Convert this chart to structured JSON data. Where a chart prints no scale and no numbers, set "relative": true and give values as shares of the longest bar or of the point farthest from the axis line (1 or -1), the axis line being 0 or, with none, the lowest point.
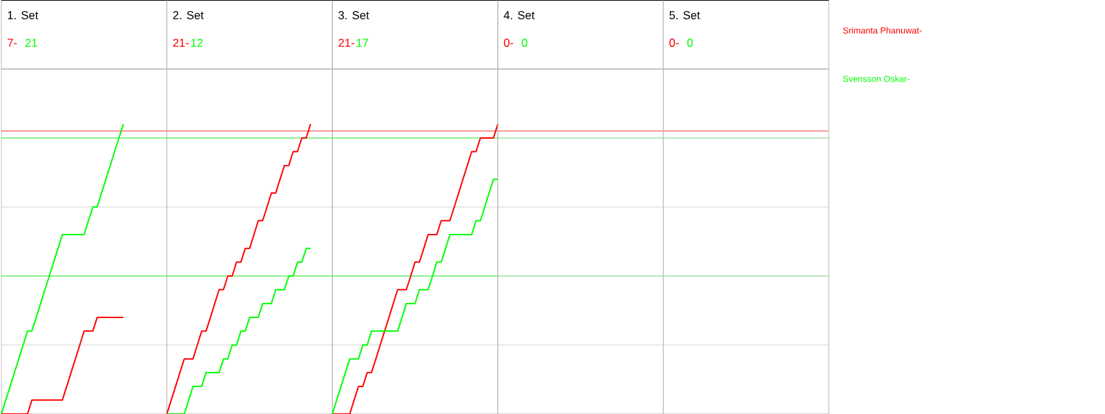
{
  "chart_data": [
    {
      "type": "line",
      "title": "1. Set",
      "annotations": [
        "7-",
        "21"
      ],
      "relative": true,
      "grid": "y",
      "legend": "right",
      "categories": [
        null,
        null,
        null,
        null,
        null,
        null,
        null,
        null,
        null,
        null,
        null,
        null,
        null,
        null,
        null,
        null,
        null,
        null,
        null,
        null,
        null,
        null,
        null,
        null,
        null,
        null,
        null,
        null,
        null,
        null,
        null,
        null,
        null,
        null,
        null,
        null,
        null,
        null,
        null
      ],
      "ref_lines": [
        {
          "axis": "y",
          "value": 0.976,
          "color": "#ff0000"
        },
        {
          "axis": "y",
          "value": 0.952,
          "color": "#00ff00"
        },
        {
          "axis": "y",
          "value": 0.476,
          "color": "#00ff00"
        }
      ],
      "series": [
        {
          "name": "Srimanta Phanuwat-",
          "color": "#ff0000",
          "values": [
            0,
            0,
            0,
            0,
            0,
            0,
            0,
            0.048,
            0.048,
            0.048,
            0.048,
            0.048,
            0.048,
            0.048,
            0.048,
            0.095,
            0.143,
            0.19,
            0.238,
            0.286,
            0.286,
            0.286,
            0.333,
            0.333,
            0.333,
            0.333,
            0.333,
            0.333,
            0.333,
            null,
            null,
            null,
            null,
            null,
            null,
            null,
            null,
            null,
            null
          ]
        },
        {
          "name": "Svensson Oskar-",
          "color": "#00ff00",
          "values": [
            0,
            0.048,
            0.095,
            0.143,
            0.19,
            0.238,
            0.286,
            0.286,
            0.333,
            0.381,
            0.429,
            0.476,
            0.524,
            0.571,
            0.619,
            0.619,
            0.619,
            0.619,
            0.619,
            0.619,
            0.667,
            0.714,
            0.714,
            0.762,
            0.81,
            0.857,
            0.905,
            0.952,
            1,
            null,
            null,
            null,
            null,
            null,
            null,
            null,
            null,
            null,
            null
          ]
        }
      ]
    },
    {
      "type": "line",
      "title": "2. Set",
      "annotations": [
        "21-",
        "12"
      ],
      "relative": true,
      "grid": "y",
      "categories": [
        null,
        null,
        null,
        null,
        null,
        null,
        null,
        null,
        null,
        null,
        null,
        null,
        null,
        null,
        null,
        null,
        null,
        null,
        null,
        null,
        null,
        null,
        null,
        null,
        null,
        null,
        null,
        null,
        null,
        null,
        null,
        null,
        null,
        null,
        null,
        null,
        null,
        null,
        null
      ],
      "ref_lines": [
        {
          "axis": "y",
          "value": 0.976,
          "color": "#ff0000"
        },
        {
          "axis": "y",
          "value": 0.952,
          "color": "#00ff00"
        },
        {
          "axis": "y",
          "value": 0.476,
          "color": "#00ff00"
        }
      ],
      "series": [
        {
          "color": "#ff0000",
          "values": [
            0,
            0.048,
            0.095,
            0.143,
            0.19,
            0.19,
            0.19,
            0.238,
            0.286,
            0.286,
            0.333,
            0.381,
            0.429,
            0.429,
            0.476,
            0.476,
            0.524,
            0.524,
            0.571,
            0.571,
            0.619,
            0.667,
            0.667,
            0.714,
            0.762,
            0.762,
            0.81,
            0.857,
            0.857,
            0.905,
            0.905,
            0.952,
            0.952,
            1,
            null,
            null,
            null,
            null,
            null
          ]
        },
        {
          "color": "#00ff00",
          "values": [
            0,
            0,
            0,
            0,
            0,
            0.048,
            0.095,
            0.095,
            0.095,
            0.143,
            0.143,
            0.143,
            0.143,
            0.19,
            0.19,
            0.238,
            0.238,
            0.286,
            0.286,
            0.333,
            0.333,
            0.333,
            0.381,
            0.381,
            0.381,
            0.429,
            0.429,
            0.429,
            0.476,
            0.476,
            0.524,
            0.524,
            0.571,
            0.571,
            null,
            null,
            null,
            null,
            null
          ]
        }
      ]
    },
    {
      "type": "line",
      "title": "3. Set",
      "annotations": [
        "21-",
        "17"
      ],
      "relative": true,
      "grid": "y",
      "categories": [
        null,
        null,
        null,
        null,
        null,
        null,
        null,
        null,
        null,
        null,
        null,
        null,
        null,
        null,
        null,
        null,
        null,
        null,
        null,
        null,
        null,
        null,
        null,
        null,
        null,
        null,
        null,
        null,
        null,
        null,
        null,
        null,
        null,
        null,
        null,
        null,
        null,
        null,
        null
      ],
      "ref_lines": [
        {
          "axis": "y",
          "value": 0.976,
          "color": "#ff0000"
        },
        {
          "axis": "y",
          "value": 0.952,
          "color": "#00ff00"
        },
        {
          "axis": "y",
          "value": 0.476,
          "color": "#00ff00"
        }
      ],
      "series": [
        {
          "color": "#ff0000",
          "values": [
            0,
            0,
            0,
            0,
            0,
            0.048,
            0.095,
            0.095,
            0.143,
            0.143,
            0.19,
            0.238,
            0.286,
            0.333,
            0.381,
            0.429,
            0.429,
            0.429,
            0.476,
            0.524,
            0.524,
            0.571,
            0.619,
            0.619,
            0.619,
            0.667,
            0.667,
            0.667,
            0.714,
            0.762,
            0.81,
            0.857,
            0.905,
            0.905,
            0.952,
            0.952,
            0.952,
            0.952,
            1
          ]
        },
        {
          "color": "#00ff00",
          "values": [
            0,
            0.048,
            0.095,
            0.143,
            0.19,
            0.19,
            0.19,
            0.238,
            0.238,
            0.286,
            0.286,
            0.286,
            0.286,
            0.286,
            0.286,
            0.286,
            0.333,
            0.381,
            0.381,
            0.381,
            0.429,
            0.429,
            0.429,
            0.476,
            0.524,
            0.524,
            0.571,
            0.619,
            0.619,
            0.619,
            0.619,
            0.619,
            0.619,
            0.667,
            0.667,
            0.714,
            0.762,
            0.81,
            0.81
          ]
        }
      ]
    },
    {
      "type": "other",
      "title": "4. Set",
      "annotations": [
        "0-",
        "0"
      ]
    },
    {
      "type": "other",
      "title": "5. Set",
      "annotations": [
        "0-",
        "0"
      ]
    }
  ]
}
